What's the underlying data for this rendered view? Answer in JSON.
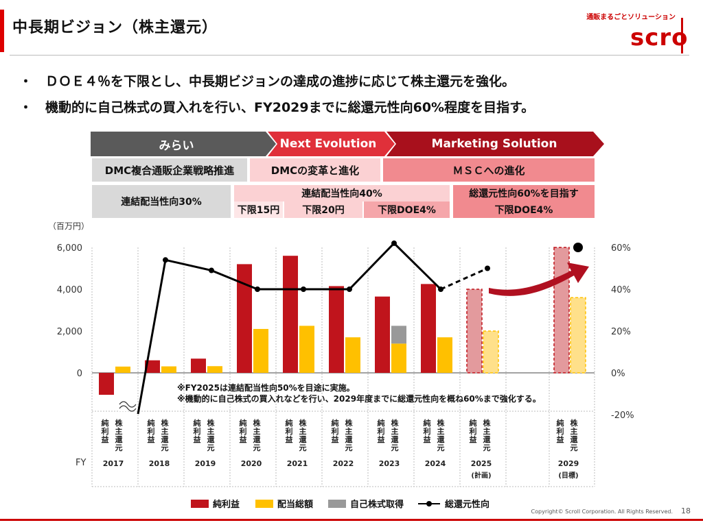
{
  "header": {
    "title": "中長期ビジョン（株主還元）",
    "tagline": "通販まるごとソリューション",
    "logo": "scroll"
  },
  "bullets": [
    "・　ＤＯＥ４％を下限とし、中長期ビジョンの達成の進捗に応じて株主還元を強化。",
    "・　機動的に自己株式の買入れを行い、FY2029までに総還元性向60%程度を目指す。"
  ],
  "phases": [
    "みらい",
    "Next Evolution",
    "Marketing Solution"
  ],
  "strategies": [
    "DMC複合通販企業戦略推進",
    "DMCの変革と進化",
    "ＭＳＣへの進化"
  ],
  "policies": {
    "p1": "連結配当性向30%",
    "p2": "連結配当性向40%",
    "p2a": "下限15円",
    "p2b": "下限20円",
    "p2c": "下限DOE4%",
    "p3a": "総還元性向60%を目指す",
    "p3b": "下限DOE4%"
  },
  "notes": [
    "※FY2025は連結配当性向50%を目途に実施。",
    "※機動的に自己株式の買入れなどを行い、2029年度までに総還元性向を概ね60%まで強化する。"
  ],
  "colors": {
    "net_income": "#c0141c",
    "dividend": "#ffc000",
    "buyback": "#999999",
    "ratio": "#000000",
    "plan_net": "#e39a9d",
    "plan_div": "#ffe08a",
    "phase1": "#5a5a5a",
    "phase2": "#e0303a",
    "phase3": "#a8101c"
  },
  "chart_data": {
    "type": "bar",
    "unit_label": "（百万円）",
    "fy_label": "FY",
    "categories": [
      "2017",
      "2018",
      "2019",
      "2020",
      "2021",
      "2022",
      "2023",
      "2024",
      "2025",
      "2029"
    ],
    "category_sub": [
      "",
      "",
      "",
      "",
      "",
      "",
      "",
      "",
      "(計画)",
      "(目標)"
    ],
    "bar_labels": [
      "純利益",
      "株主還元"
    ],
    "y_left": {
      "min": -1000,
      "max": 6000,
      "ticks": [
        0,
        2000,
        4000,
        6000
      ],
      "tick_labels": [
        "0",
        "2,000",
        "4,000",
        "6,000"
      ]
    },
    "y_right": {
      "min": -20,
      "max": 60,
      "ticks": [
        -20,
        0,
        20,
        40,
        60
      ],
      "tick_labels": [
        "-20%",
        "0%",
        "20%",
        "40%",
        "60%"
      ]
    },
    "series": [
      {
        "name": "純利益",
        "values": [
          -1050,
          600,
          680,
          5200,
          5600,
          4150,
          3650,
          4250,
          4000,
          6000
        ]
      },
      {
        "name": "配当総額",
        "values": [
          300,
          310,
          320,
          2100,
          2250,
          1700,
          1400,
          1700,
          2000,
          3600
        ]
      },
      {
        "name": "自己株式取得",
        "values": [
          0,
          0,
          0,
          0,
          0,
          0,
          850,
          0,
          0,
          0
        ]
      },
      {
        "name": "総還元性向",
        "values": [
          -40,
          54,
          49,
          40,
          40,
          40,
          62,
          40,
          50,
          60
        ]
      }
    ],
    "legend": [
      "純利益",
      "配当総額",
      "自己株式取得",
      "総還元性向"
    ]
  },
  "footer": {
    "copyright": "Copyright© Scroll Corporation. All Rights Reserved.",
    "page": "18"
  }
}
